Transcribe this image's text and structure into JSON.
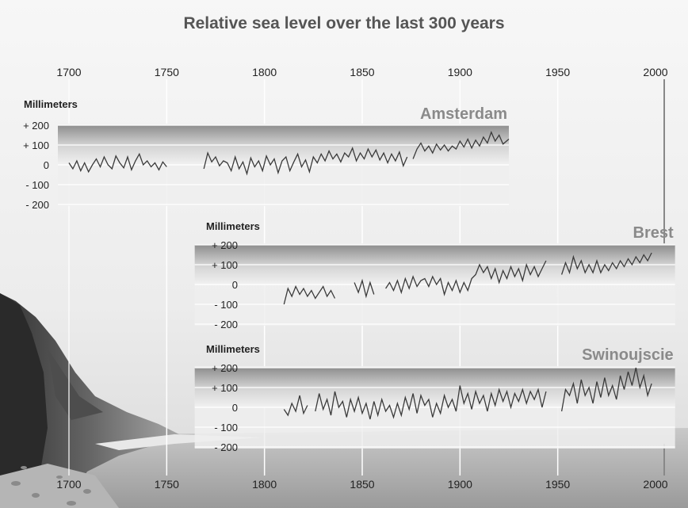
{
  "title": "Relative sea level over the last 300 years",
  "colors": {
    "line": "#3a3a3a",
    "station_label": "#8a8a8a",
    "text": "#222222"
  },
  "chart_data": {
    "type": "line",
    "title": "Relative sea level over the last 300 years",
    "x_axis": {
      "range": [
        1700,
        2000
      ],
      "ticks": [
        "1700",
        "1750",
        "1800",
        "1850",
        "1900",
        "1950",
        "2000"
      ]
    },
    "y_unit": "Millimeters",
    "y_ticks": [
      "+ 200",
      "+ 100",
      "0",
      "- 100",
      "- 200"
    ],
    "y_range": [
      -200,
      200
    ],
    "grid": true,
    "panels": [
      {
        "name": "Amsterdam",
        "xlim": [
          1700,
          1925
        ],
        "segments": [
          [
            [
              1700,
              10
            ],
            [
              1702,
              -20
            ],
            [
              1704,
              20
            ],
            [
              1706,
              -30
            ],
            [
              1708,
              10
            ],
            [
              1710,
              -35
            ],
            [
              1712,
              0
            ],
            [
              1714,
              30
            ],
            [
              1716,
              -10
            ],
            [
              1718,
              40
            ],
            [
              1720,
              0
            ],
            [
              1722,
              -20
            ],
            [
              1724,
              45
            ],
            [
              1726,
              10
            ],
            [
              1728,
              -15
            ],
            [
              1730,
              40
            ],
            [
              1732,
              -25
            ],
            [
              1734,
              20
            ],
            [
              1736,
              55
            ],
            [
              1738,
              0
            ],
            [
              1740,
              20
            ],
            [
              1742,
              -10
            ],
            [
              1744,
              10
            ],
            [
              1746,
              -25
            ],
            [
              1748,
              15
            ],
            [
              1750,
              -10
            ]
          ],
          [
            [
              1769,
              -20
            ],
            [
              1771,
              60
            ],
            [
              1773,
              15
            ],
            [
              1775,
              40
            ],
            [
              1777,
              -5
            ],
            [
              1779,
              20
            ],
            [
              1781,
              10
            ],
            [
              1783,
              -30
            ],
            [
              1785,
              40
            ],
            [
              1787,
              -20
            ],
            [
              1789,
              15
            ],
            [
              1791,
              -45
            ],
            [
              1793,
              35
            ],
            [
              1795,
              -10
            ],
            [
              1797,
              20
            ],
            [
              1799,
              -30
            ],
            [
              1801,
              45
            ],
            [
              1803,
              0
            ],
            [
              1805,
              30
            ],
            [
              1807,
              -40
            ],
            [
              1809,
              20
            ],
            [
              1811,
              40
            ],
            [
              1813,
              -30
            ],
            [
              1815,
              15
            ],
            [
              1817,
              55
            ],
            [
              1819,
              -10
            ],
            [
              1821,
              25
            ],
            [
              1823,
              -35
            ],
            [
              1825,
              40
            ],
            [
              1827,
              10
            ],
            [
              1829,
              55
            ],
            [
              1831,
              20
            ],
            [
              1833,
              70
            ],
            [
              1835,
              30
            ],
            [
              1837,
              55
            ],
            [
              1839,
              15
            ],
            [
              1841,
              60
            ],
            [
              1843,
              40
            ],
            [
              1845,
              85
            ],
            [
              1847,
              20
            ],
            [
              1849,
              60
            ],
            [
              1851,
              30
            ],
            [
              1853,
              80
            ],
            [
              1855,
              40
            ],
            [
              1857,
              75
            ],
            [
              1859,
              25
            ],
            [
              1861,
              60
            ],
            [
              1863,
              10
            ],
            [
              1865,
              55
            ],
            [
              1867,
              20
            ],
            [
              1869,
              65
            ],
            [
              1871,
              -5
            ],
            [
              1873,
              40
            ]
          ],
          [
            [
              1876,
              30
            ],
            [
              1878,
              80
            ],
            [
              1880,
              110
            ],
            [
              1882,
              70
            ],
            [
              1884,
              95
            ],
            [
              1886,
              60
            ],
            [
              1888,
              105
            ],
            [
              1890,
              75
            ],
            [
              1892,
              100
            ],
            [
              1894,
              70
            ],
            [
              1896,
              95
            ],
            [
              1898,
              80
            ],
            [
              1900,
              120
            ],
            [
              1902,
              90
            ],
            [
              1904,
              130
            ],
            [
              1906,
              85
            ],
            [
              1908,
              125
            ],
            [
              1910,
              95
            ],
            [
              1912,
              140
            ],
            [
              1914,
              110
            ],
            [
              1916,
              165
            ],
            [
              1918,
              120
            ],
            [
              1920,
              150
            ],
            [
              1922,
              105
            ],
            [
              1925,
              130
            ]
          ]
        ]
      },
      {
        "name": "Brest",
        "xlim": [
          1770,
          2010
        ],
        "segments": [
          [
            [
              1810,
              -100
            ],
            [
              1812,
              -20
            ],
            [
              1814,
              -60
            ],
            [
              1816,
              -10
            ],
            [
              1818,
              -50
            ],
            [
              1820,
              -20
            ],
            [
              1822,
              -60
            ],
            [
              1824,
              -30
            ],
            [
              1826,
              -70
            ],
            [
              1828,
              -40
            ],
            [
              1830,
              -10
            ],
            [
              1832,
              -60
            ],
            [
              1834,
              -30
            ],
            [
              1836,
              -70
            ]
          ],
          [
            [
              1846,
              10
            ],
            [
              1848,
              -40
            ],
            [
              1850,
              20
            ],
            [
              1852,
              -60
            ],
            [
              1854,
              10
            ],
            [
              1856,
              -50
            ]
          ],
          [
            [
              1862,
              -20
            ],
            [
              1864,
              10
            ],
            [
              1866,
              -30
            ],
            [
              1868,
              20
            ],
            [
              1870,
              -40
            ],
            [
              1872,
              30
            ],
            [
              1874,
              -20
            ],
            [
              1876,
              40
            ],
            [
              1878,
              -10
            ],
            [
              1880,
              20
            ],
            [
              1882,
              30
            ],
            [
              1884,
              -10
            ],
            [
              1886,
              40
            ],
            [
              1888,
              0
            ],
            [
              1890,
              30
            ],
            [
              1892,
              -50
            ],
            [
              1894,
              10
            ],
            [
              1896,
              -30
            ],
            [
              1898,
              20
            ],
            [
              1900,
              -40
            ],
            [
              1902,
              10
            ],
            [
              1904,
              -30
            ],
            [
              1906,
              30
            ],
            [
              1908,
              50
            ],
            [
              1910,
              100
            ],
            [
              1912,
              60
            ],
            [
              1914,
              90
            ],
            [
              1916,
              30
            ],
            [
              1918,
              80
            ],
            [
              1920,
              10
            ],
            [
              1922,
              70
            ],
            [
              1924,
              30
            ],
            [
              1926,
              90
            ],
            [
              1928,
              40
            ],
            [
              1930,
              80
            ],
            [
              1932,
              20
            ],
            [
              1934,
              100
            ],
            [
              1936,
              50
            ],
            [
              1938,
              90
            ],
            [
              1940,
              40
            ],
            [
              1942,
              80
            ],
            [
              1944,
              120
            ]
          ],
          [
            [
              1952,
              50
            ],
            [
              1954,
              110
            ],
            [
              1956,
              60
            ],
            [
              1958,
              140
            ],
            [
              1960,
              80
            ],
            [
              1962,
              120
            ],
            [
              1964,
              60
            ],
            [
              1966,
              100
            ],
            [
              1968,
              60
            ],
            [
              1970,
              120
            ],
            [
              1972,
              60
            ],
            [
              1974,
              100
            ],
            [
              1976,
              70
            ],
            [
              1978,
              110
            ],
            [
              1980,
              80
            ],
            [
              1982,
              120
            ],
            [
              1984,
              90
            ],
            [
              1986,
              130
            ],
            [
              1988,
              100
            ],
            [
              1990,
              140
            ],
            [
              1992,
              110
            ],
            [
              1994,
              150
            ],
            [
              1996,
              120
            ],
            [
              1998,
              160
            ]
          ]
        ]
      },
      {
        "name": "Swinoujscie",
        "xlim": [
          1770,
          2010
        ],
        "segments": [
          [
            [
              1810,
              -10
            ],
            [
              1812,
              -40
            ],
            [
              1814,
              20
            ],
            [
              1816,
              -20
            ],
            [
              1818,
              60
            ],
            [
              1820,
              -30
            ],
            [
              1822,
              10
            ]
          ],
          [
            [
              1826,
              -20
            ],
            [
              1828,
              70
            ],
            [
              1830,
              -10
            ],
            [
              1832,
              40
            ],
            [
              1834,
              -40
            ],
            [
              1836,
              80
            ],
            [
              1838,
              0
            ],
            [
              1840,
              30
            ],
            [
              1842,
              -50
            ],
            [
              1844,
              40
            ],
            [
              1846,
              -20
            ],
            [
              1848,
              50
            ],
            [
              1850,
              -30
            ],
            [
              1852,
              20
            ],
            [
              1854,
              -60
            ],
            [
              1856,
              30
            ],
            [
              1858,
              -40
            ],
            [
              1860,
              40
            ],
            [
              1862,
              -20
            ],
            [
              1864,
              10
            ],
            [
              1866,
              -50
            ],
            [
              1868,
              20
            ],
            [
              1870,
              -40
            ],
            [
              1872,
              50
            ],
            [
              1874,
              -10
            ],
            [
              1876,
              70
            ],
            [
              1878,
              -30
            ],
            [
              1880,
              60
            ],
            [
              1882,
              10
            ],
            [
              1884,
              40
            ],
            [
              1886,
              -50
            ],
            [
              1888,
              20
            ],
            [
              1890,
              -30
            ],
            [
              1892,
              60
            ],
            [
              1894,
              0
            ],
            [
              1896,
              40
            ],
            [
              1898,
              -20
            ],
            [
              1900,
              110
            ],
            [
              1902,
              20
            ],
            [
              1904,
              70
            ],
            [
              1906,
              -10
            ],
            [
              1908,
              80
            ],
            [
              1910,
              20
            ],
            [
              1912,
              60
            ],
            [
              1914,
              -20
            ],
            [
              1916,
              70
            ],
            [
              1918,
              10
            ],
            [
              1920,
              90
            ],
            [
              1922,
              30
            ],
            [
              1924,
              80
            ],
            [
              1926,
              0
            ],
            [
              1928,
              70
            ],
            [
              1930,
              30
            ],
            [
              1932,
              90
            ],
            [
              1934,
              20
            ],
            [
              1936,
              80
            ],
            [
              1938,
              40
            ],
            [
              1940,
              90
            ],
            [
              1942,
              0
            ],
            [
              1944,
              80
            ]
          ],
          [
            [
              1952,
              -20
            ],
            [
              1954,
              90
            ],
            [
              1956,
              60
            ],
            [
              1958,
              120
            ],
            [
              1960,
              20
            ],
            [
              1962,
              140
            ],
            [
              1964,
              60
            ],
            [
              1966,
              100
            ],
            [
              1968,
              20
            ],
            [
              1970,
              130
            ],
            [
              1972,
              50
            ],
            [
              1974,
              150
            ],
            [
              1976,
              60
            ],
            [
              1978,
              110
            ],
            [
              1980,
              40
            ],
            [
              1982,
              160
            ],
            [
              1984,
              90
            ],
            [
              1986,
              180
            ],
            [
              1988,
              110
            ],
            [
              1990,
              200
            ],
            [
              1992,
              100
            ],
            [
              1994,
              160
            ],
            [
              1996,
              60
            ],
            [
              1998,
              120
            ]
          ]
        ]
      }
    ]
  }
}
